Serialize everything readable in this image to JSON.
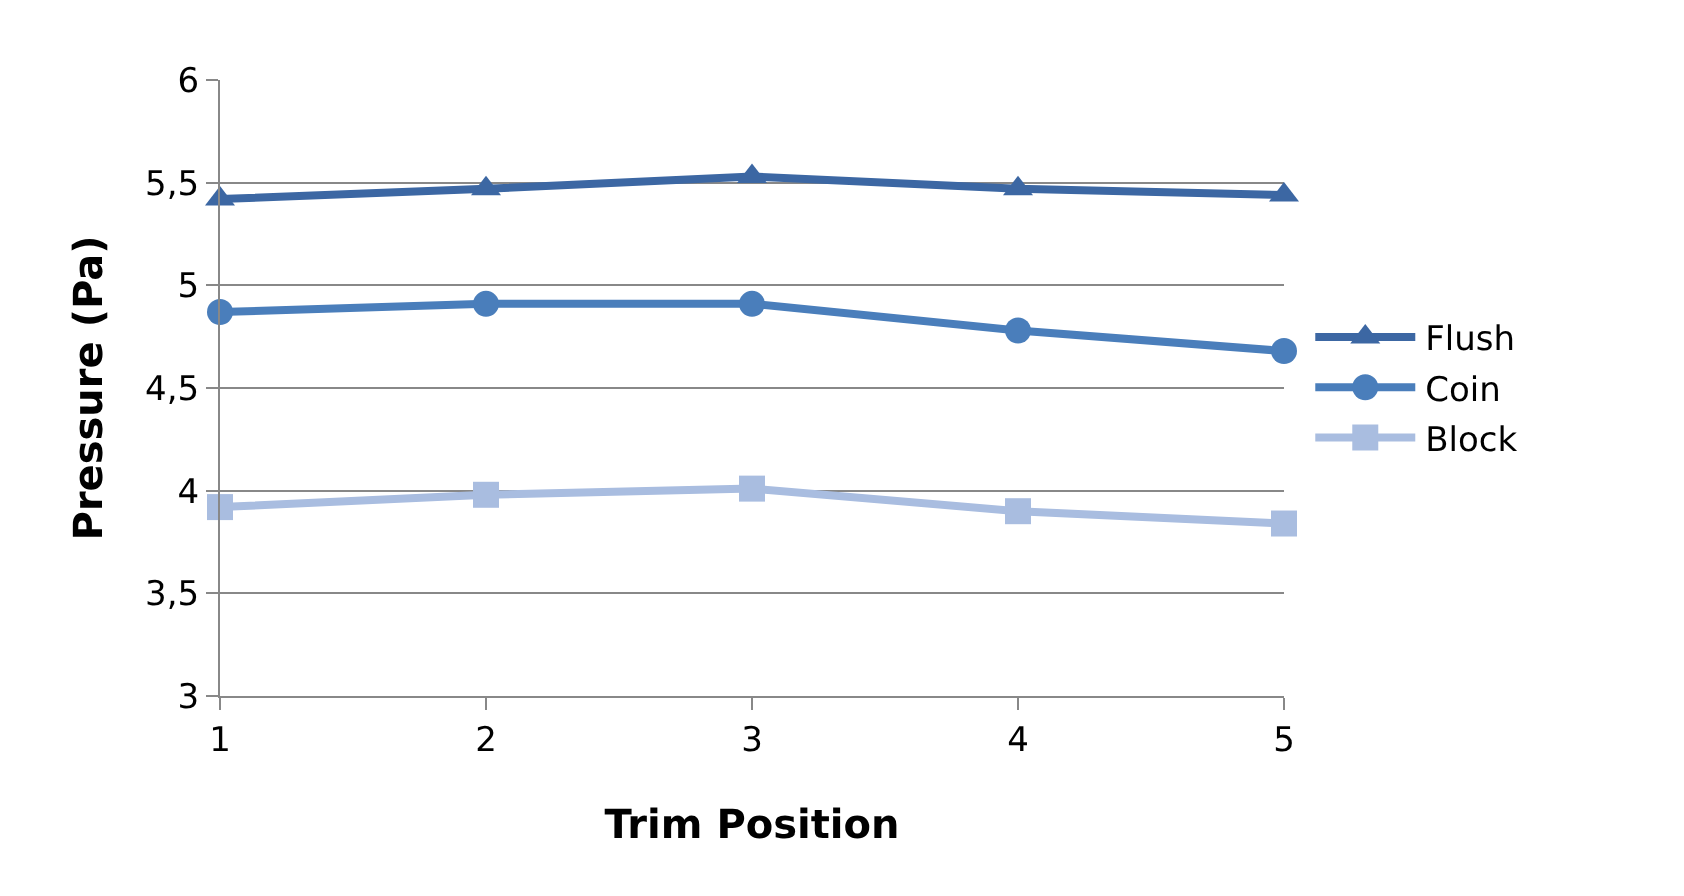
{
  "chart_data": {
    "type": "line",
    "xlabel": "Trim Position",
    "ylabel": "Pressure (Pa)",
    "x": [
      1,
      2,
      3,
      4,
      5
    ],
    "xlim": [
      1,
      5
    ],
    "xticks": [
      1,
      2,
      3,
      4,
      5
    ],
    "ylim": [
      3,
      6
    ],
    "yticks": [
      3,
      {
        "value": 3.5,
        "label": "3,5"
      },
      4,
      {
        "value": 4.5,
        "label": "4,5"
      },
      5,
      {
        "value": 5.5,
        "label": "5,5"
      },
      6
    ],
    "grid": "y",
    "legend": "right",
    "series": [
      {
        "name": "Flush",
        "color": "#3c67a3",
        "marker": "triangle",
        "values": [
          5.42,
          5.47,
          5.53,
          5.47,
          5.44
        ]
      },
      {
        "name": "Coin",
        "color": "#4a7ebb",
        "marker": "circle",
        "values": [
          4.87,
          4.91,
          4.91,
          4.78,
          4.68
        ]
      },
      {
        "name": "Block",
        "color": "#a9bde0",
        "marker": "square",
        "values": [
          3.92,
          3.98,
          4.01,
          3.9,
          3.84
        ]
      }
    ]
  }
}
